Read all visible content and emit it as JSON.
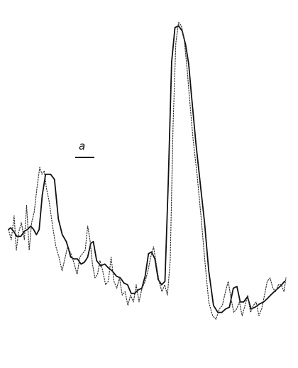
{
  "chart_data": {
    "type": "line",
    "title": "",
    "xlabel": "",
    "ylabel": "",
    "axes_visible": false,
    "grid": false,
    "legend": "none",
    "xlim": [
      0,
      100
    ],
    "ylim": [
      0,
      100
    ],
    "annotation": {
      "label": "a",
      "kind": "scale-bar"
    },
    "series": [
      {
        "style": "solid",
        "color": "#111111",
        "x": [
          0,
          0.8,
          1.8,
          3,
          4.4,
          5.7,
          6.8,
          8,
          9,
          10,
          11,
          12.1,
          13.3,
          14.1,
          15.1,
          16.5,
          17.9,
          19.3,
          20.7,
          21.5,
          22.3,
          23.4,
          24.7,
          26,
          27.2,
          28.4,
          29.5,
          30.4,
          31.6,
          33,
          34.5,
          35.7,
          37.2,
          38.7,
          40.1,
          41.4,
          42.7,
          44,
          45.3,
          46.5,
          47.8,
          49,
          50.2,
          51.3,
          52.5,
          53.7,
          54.9,
          56.1,
          57.3,
          58.5,
          59.7,
          61,
          62.3,
          63.5,
          64.6,
          65.6,
          67.2,
          68.8,
          70.3,
          71.8,
          73.5,
          75.1,
          76.5,
          77.9,
          79.2,
          80.6,
          81.9,
          83.1,
          84.3,
          85.7,
          87,
          88.4,
          90.1,
          91.5,
          92.8,
          94,
          95.3,
          96.7,
          98,
          99
        ],
        "y": [
          36,
          36.5,
          35.5,
          34,
          34,
          35.5,
          36,
          37,
          36,
          34.5,
          36,
          46,
          52,
          52,
          52,
          50.5,
          39,
          34.5,
          32.5,
          30.5,
          28,
          27.5,
          27.5,
          26,
          26.5,
          28,
          32,
          32.5,
          27,
          25.5,
          26,
          25,
          24,
          22.5,
          22,
          20.5,
          20,
          17.5,
          17.5,
          18.5,
          19,
          22.5,
          29,
          29.5,
          27.5,
          21.5,
          20,
          21,
          50,
          84.5,
          94.5,
          95,
          93.5,
          89.5,
          84,
          75,
          61,
          49,
          38,
          24,
          14,
          12,
          12,
          13,
          13.5,
          19,
          19.5,
          15,
          15,
          16.5,
          13,
          13.5,
          14.5,
          15,
          16,
          17,
          18,
          19,
          20,
          21
        ]
      },
      {
        "style": "dotted",
        "color": "#333333",
        "x": [
          0,
          1,
          2,
          2.8,
          3.6,
          4.6,
          5.7,
          6.5,
          7.4,
          8.3,
          9.2,
          10.2,
          11.2,
          12,
          12.8,
          13.6,
          14.6,
          15.8,
          17,
          18.1,
          19.2,
          20.2,
          21.2,
          22.4,
          23.6,
          24.6,
          25.6,
          26.5,
          27.5,
          28.4,
          29.2,
          30.1,
          31,
          31.9,
          32.8,
          33.8,
          34.8,
          35.8,
          36.8,
          37.8,
          38.8,
          39.8,
          40.8,
          41.8,
          42.8,
          43.8,
          44.8,
          45.8,
          46.8,
          47.9,
          49,
          50,
          51,
          52,
          53,
          54,
          55,
          56,
          57,
          58,
          59,
          60,
          61,
          62,
          63,
          64,
          65,
          66.2,
          67.6,
          69,
          70.4,
          71.8,
          73.2,
          74.4,
          75.6,
          76.7,
          77.8,
          78.8,
          79.8,
          80.8,
          81.8,
          82.8,
          83.8,
          84.8,
          85.8,
          86.8,
          87.8,
          88.8,
          89.8,
          90.8,
          91.8,
          92.8,
          93.8,
          94.8,
          95.8,
          96.8,
          97.8,
          98.8,
          99.5
        ],
        "y": [
          36,
          33,
          40,
          30,
          35,
          38,
          33,
          43,
          30,
          38,
          41,
          48,
          54,
          52,
          53,
          48,
          44,
          37,
          31,
          28,
          24,
          27.5,
          31,
          29,
          26,
          23,
          28,
          29,
          30,
          37,
          33,
          26,
          22,
          23,
          27,
          24,
          20,
          21,
          28,
          21,
          19,
          22,
          17,
          18,
          14,
          17,
          15,
          20,
          15,
          19,
          21,
          24,
          28,
          31,
          26,
          21,
          18,
          20,
          17,
          27,
          66,
          90,
          96,
          95,
          91,
          83,
          73,
          62,
          52,
          40,
          27,
          15,
          11,
          10,
          13,
          14,
          18,
          21,
          16,
          12,
          13,
          15,
          11,
          14,
          17,
          12,
          14,
          15,
          11,
          13,
          17,
          21,
          22,
          19,
          18,
          20,
          20,
          18,
          22
        ]
      }
    ]
  }
}
